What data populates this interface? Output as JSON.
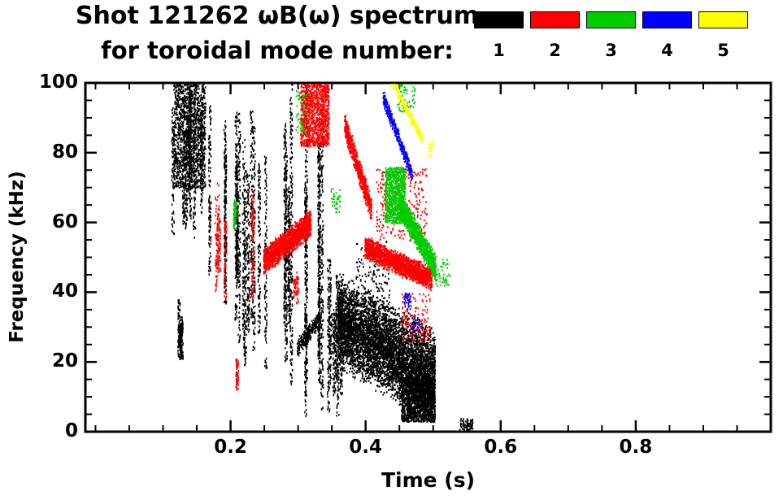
{
  "chart_data": {
    "type": "scatter",
    "title": "Shot 121262 ωB(ω) spectrum",
    "subtitle": "for toroidal mode number:",
    "xlabel": "Time (s)",
    "ylabel": "Frequency (kHz)",
    "xlim": [
      -0.015,
      1.0
    ],
    "ylim": [
      0,
      100
    ],
    "xticks": [
      {
        "v": 0.2,
        "label": "0.2"
      },
      {
        "v": 0.4,
        "label": "0.4"
      },
      {
        "v": 0.6,
        "label": "0.6"
      },
      {
        "v": 0.8,
        "label": "0.8"
      }
    ],
    "yticks": [
      {
        "v": 0,
        "label": "0"
      },
      {
        "v": 20,
        "label": "20"
      },
      {
        "v": 40,
        "label": "40"
      },
      {
        "v": 60,
        "label": "60"
      },
      {
        "v": 80,
        "label": "80"
      },
      {
        "v": 100,
        "label": "100"
      }
    ],
    "x_minor_step": 0.05,
    "y_minor_step": 5,
    "grid": false,
    "legend_position": "top-right",
    "legend": [
      {
        "label": "1",
        "color": "#000000"
      },
      {
        "label": "2",
        "color": "#ff0000"
      },
      {
        "label": "3",
        "color": "#00cc00"
      },
      {
        "label": "4",
        "color": "#0000ff"
      },
      {
        "label": "5",
        "color": "#ffff00"
      }
    ],
    "series": [
      {
        "name": "n=1",
        "color": "#000000",
        "clusters": [
          {
            "shape": "blob",
            "t": [
              0.115,
              0.162
            ],
            "f": [
              70,
              101
            ],
            "n": 1400
          },
          {
            "shape": "vlines",
            "t": [
              0.112,
              0.166
            ],
            "f": [
              55,
              100
            ],
            "lines": 8,
            "n": 640
          },
          {
            "shape": "vlines",
            "t": [
              0.117,
              0.136
            ],
            "f": [
              14,
              40
            ],
            "lines": 3,
            "n": 240
          },
          {
            "shape": "vlines",
            "t": [
              0.168,
              0.262
            ],
            "f": [
              18,
              96
            ],
            "lines": 14,
            "n": 1700
          },
          {
            "shape": "vlines",
            "t": [
              0.272,
              0.335
            ],
            "f": [
              2,
              101
            ],
            "lines": 9,
            "n": 1600
          },
          {
            "shape": "band",
            "t": [
              0.298,
              0.332
            ],
            "fc": [
              24,
              33
            ],
            "w": 5,
            "n": 260
          },
          {
            "shape": "vlines",
            "t": [
              0.335,
              0.375
            ],
            "f": [
              4,
              50
            ],
            "lines": 6,
            "n": 480
          },
          {
            "shape": "blob",
            "t": [
              0.345,
              0.382
            ],
            "f": [
              22,
              34
            ],
            "n": 240
          },
          {
            "shape": "band",
            "t": [
              0.358,
              0.502
            ],
            "fc": [
              32,
              16
            ],
            "w": 24,
            "n": 5200
          },
          {
            "shape": "blob",
            "t": [
              0.452,
              0.502
            ],
            "f": [
              3,
              16
            ],
            "n": 1400
          },
          {
            "shape": "blob",
            "t": [
              0.385,
              0.435
            ],
            "f": [
              36,
              55
            ],
            "n": 150
          },
          {
            "shape": "blob",
            "t": [
              0.538,
              0.558
            ],
            "f": [
              0,
              4
            ],
            "n": 80
          }
        ]
      },
      {
        "name": "n=2",
        "color": "#ff0000",
        "clusters": [
          {
            "shape": "vlines",
            "t": [
              0.148,
              0.235
            ],
            "f": [
              38,
              72
            ],
            "lines": 6,
            "n": 320
          },
          {
            "shape": "vlines",
            "t": [
              0.208,
              0.224
            ],
            "f": [
              12,
              22
            ],
            "lines": 2,
            "n": 80
          },
          {
            "shape": "band",
            "t": [
              0.248,
              0.318
            ],
            "fc": [
              49,
              60
            ],
            "w": 7,
            "n": 1500
          },
          {
            "shape": "blob",
            "t": [
              0.303,
              0.345
            ],
            "f": [
              82,
              101
            ],
            "n": 1150
          },
          {
            "shape": "band",
            "t": [
              0.368,
              0.408
            ],
            "fc": [
              88,
              64
            ],
            "w": 7,
            "n": 620
          },
          {
            "shape": "band",
            "t": [
              0.398,
              0.497
            ],
            "fc": [
              53,
              44
            ],
            "w": 6,
            "n": 1800
          },
          {
            "shape": "blob",
            "t": [
              0.415,
              0.49
            ],
            "f": [
              55,
              76
            ],
            "n": 300
          },
          {
            "shape": "blob",
            "t": [
              0.452,
              0.497
            ],
            "f": [
              26,
              40
            ],
            "n": 130
          },
          {
            "shape": "vlines",
            "t": [
              0.288,
              0.3
            ],
            "f": [
              36,
              48
            ],
            "lines": 2,
            "n": 60
          }
        ]
      },
      {
        "name": "n=3",
        "color": "#00cc00",
        "clusters": [
          {
            "shape": "blob",
            "t": [
              0.428,
              0.458
            ],
            "f": [
              60,
              76
            ],
            "n": 850
          },
          {
            "shape": "band",
            "t": [
              0.448,
              0.503
            ],
            "fc": [
              66,
              47
            ],
            "w": 7,
            "n": 1250
          },
          {
            "shape": "vlines",
            "t": [
              0.2,
              0.214
            ],
            "f": [
              58,
              70
            ],
            "lines": 2,
            "n": 80
          },
          {
            "shape": "blob",
            "t": [
              0.296,
              0.312
            ],
            "f": [
              86,
              98
            ],
            "n": 60
          },
          {
            "shape": "blob",
            "t": [
              0.348,
              0.362
            ],
            "f": [
              63,
              70
            ],
            "n": 40
          },
          {
            "shape": "blob",
            "t": [
              0.445,
              0.472
            ],
            "f": [
              92,
              101
            ],
            "n": 70
          },
          {
            "shape": "blob",
            "t": [
              0.5,
              0.525
            ],
            "f": [
              42,
              50
            ],
            "n": 50
          }
        ]
      },
      {
        "name": "n=4",
        "color": "#0000ff",
        "clusters": [
          {
            "shape": "band",
            "t": [
              0.425,
              0.468
            ],
            "fc": [
              96,
              74
            ],
            "w": 4,
            "n": 400
          },
          {
            "shape": "blob",
            "t": [
              0.455,
              0.466
            ],
            "f": [
              35,
              40
            ],
            "n": 45
          },
          {
            "shape": "blob",
            "t": [
              0.468,
              0.479
            ],
            "f": [
              29,
              33
            ],
            "n": 22
          }
        ]
      },
      {
        "name": "n=5",
        "color": "#ffff00",
        "clusters": [
          {
            "shape": "band",
            "t": [
              0.437,
              0.483
            ],
            "fc": [
              101,
              84
            ],
            "w": 3,
            "n": 220
          },
          {
            "shape": "blob",
            "t": [
              0.49,
              0.5
            ],
            "f": [
              79,
              84
            ],
            "n": 20
          }
        ]
      }
    ]
  }
}
